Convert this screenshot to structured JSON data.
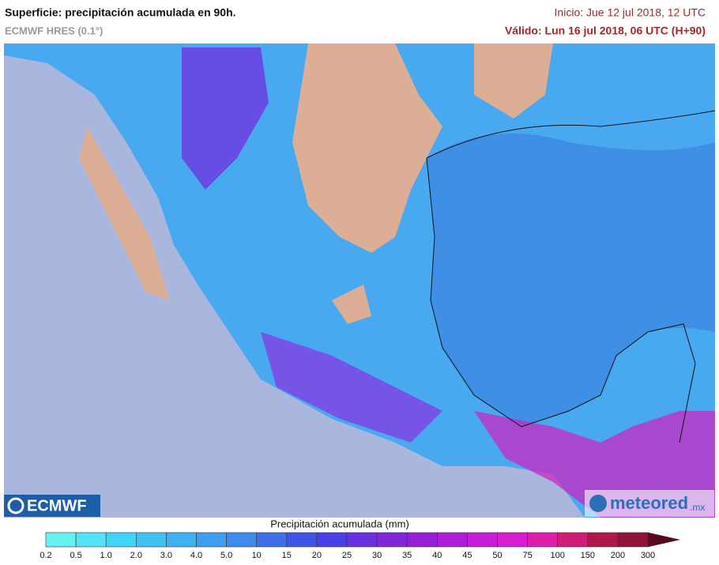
{
  "header": {
    "title": "Superficie: precipitación acumulada en 90h.",
    "model": "ECMWF HRES (0.1°)",
    "init": "Inicio: Jue 12 jul 2018, 12 UTC",
    "valid": "Válido: Lun 16 jul 2018, 06 UTC (H+90)"
  },
  "logos": {
    "left": "ECMWF",
    "right": "meteored",
    "right_suffix": ".mx"
  },
  "legend": {
    "title": "Precipitación acumulada (mm)",
    "ticks": [
      0.2,
      0.5,
      {
        "value": 1,
        "label": "1.0"
      },
      {
        "value": 2,
        "label": "2.0"
      },
      {
        "value": 3,
        "label": "3.0"
      },
      {
        "value": 4,
        "label": "4.0"
      },
      {
        "value": 5,
        "label": "5.0"
      },
      10,
      15,
      20,
      25,
      30,
      35,
      40,
      45,
      50,
      75,
      100,
      150,
      200,
      300
    ],
    "colors": [
      "#66f2f2",
      "#52e4f5",
      "#40d4f5",
      "#3fc2f2",
      "#3fb0f0",
      "#3f9eed",
      "#3f8aea",
      "#3f70e8",
      "#3f55e6",
      "#4a3fe6",
      "#6a30e0",
      "#7f28da",
      "#9620d8",
      "#ad1ed6",
      "#c51ed6",
      "#d81ed0",
      "#e01eaa",
      "#d01e78",
      "#b0184a",
      "#901438"
    ],
    "arrow_color": "#5a0a1e"
  }
}
